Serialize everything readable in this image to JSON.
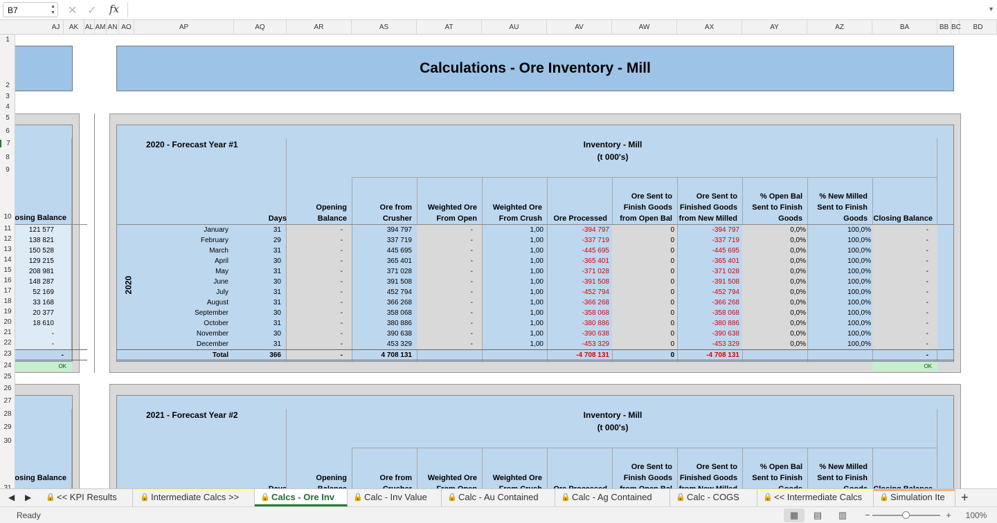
{
  "formula_bar": {
    "name_box": "B7",
    "cancel_icon": "✕",
    "enter_icon": "✓",
    "fx_label": "fx",
    "formula": ""
  },
  "columns": [
    "AJ",
    "AK",
    "AL",
    "AM",
    "AN",
    "AO",
    "AP",
    "AQ",
    "AR",
    "AS",
    "AT",
    "AU",
    "AV",
    "AW",
    "AX",
    "AY",
    "AZ",
    "BA",
    "BB",
    "BC",
    "BD"
  ],
  "rows": [
    "1",
    "2",
    "3",
    "4",
    "5",
    "6",
    "7",
    "8",
    "9",
    "10",
    "11",
    "12",
    "13",
    "14",
    "15",
    "16",
    "17",
    "18",
    "19",
    "20",
    "21",
    "22",
    "23",
    "24",
    "25",
    "26",
    "27",
    "28",
    "29",
    "30",
    "31"
  ],
  "title": "Calculations - Ore Inventory - Mill",
  "left_panel": {
    "header": "Closing Balance",
    "values": [
      "121 577",
      "138 821",
      "150 528",
      "129 215",
      "208 981",
      "148 287",
      "52 169",
      "33 168",
      "20 377",
      "18 610",
      "-",
      "-"
    ],
    "total": "-",
    "ok": "OK",
    "header2": "Closing Balance"
  },
  "block1": {
    "forecast_label": "2020 - Forecast Year #1",
    "group_title": "Inventory - Mill",
    "group_unit": "(t 000's)",
    "year": "2020",
    "headers": {
      "days": "Days",
      "opening": "Opening Balance",
      "ore_crusher": "Ore from Crusher",
      "w_open": "Weighted Ore From Open",
      "w_crush": "Weighted Ore From Crush",
      "processed": "Ore Processed",
      "sent_open": "Ore Sent to Finish Goods from Open Bal",
      "sent_new": "Ore Sent to Finished Goods from New Milled",
      "pct_open": "% Open Bal Sent to Finish Goods",
      "pct_new": "% New Milled Sent to Finish Goods",
      "closing": "Closing Balance"
    },
    "rows": [
      {
        "month": "January",
        "days": "31",
        "opening": "-",
        "crusher": "394 797",
        "w_open": "-",
        "w_crush": "1,00",
        "processed": "-394 797",
        "sent_open": "0",
        "sent_new": "-394 797",
        "pct_open": "0,0%",
        "pct_new": "100,0%",
        "closing": "-"
      },
      {
        "month": "February",
        "days": "29",
        "opening": "-",
        "crusher": "337 719",
        "w_open": "-",
        "w_crush": "1,00",
        "processed": "-337 719",
        "sent_open": "0",
        "sent_new": "-337 719",
        "pct_open": "0,0%",
        "pct_new": "100,0%",
        "closing": "-"
      },
      {
        "month": "March",
        "days": "31",
        "opening": "-",
        "crusher": "445 695",
        "w_open": "-",
        "w_crush": "1,00",
        "processed": "-445 695",
        "sent_open": "0",
        "sent_new": "-445 695",
        "pct_open": "0,0%",
        "pct_new": "100,0%",
        "closing": "-"
      },
      {
        "month": "April",
        "days": "30",
        "opening": "-",
        "crusher": "365 401",
        "w_open": "-",
        "w_crush": "1,00",
        "processed": "-365 401",
        "sent_open": "0",
        "sent_new": "-365 401",
        "pct_open": "0,0%",
        "pct_new": "100,0%",
        "closing": "-"
      },
      {
        "month": "May",
        "days": "31",
        "opening": "-",
        "crusher": "371 028",
        "w_open": "-",
        "w_crush": "1,00",
        "processed": "-371 028",
        "sent_open": "0",
        "sent_new": "-371 028",
        "pct_open": "0,0%",
        "pct_new": "100,0%",
        "closing": "-"
      },
      {
        "month": "June",
        "days": "30",
        "opening": "-",
        "crusher": "391 508",
        "w_open": "-",
        "w_crush": "1,00",
        "processed": "-391 508",
        "sent_open": "0",
        "sent_new": "-391 508",
        "pct_open": "0,0%",
        "pct_new": "100,0%",
        "closing": "-"
      },
      {
        "month": "July",
        "days": "31",
        "opening": "-",
        "crusher": "452 794",
        "w_open": "-",
        "w_crush": "1,00",
        "processed": "-452 794",
        "sent_open": "0",
        "sent_new": "-452 794",
        "pct_open": "0,0%",
        "pct_new": "100,0%",
        "closing": "-"
      },
      {
        "month": "August",
        "days": "31",
        "opening": "-",
        "crusher": "366 268",
        "w_open": "-",
        "w_crush": "1,00",
        "processed": "-366 268",
        "sent_open": "0",
        "sent_new": "-366 268",
        "pct_open": "0,0%",
        "pct_new": "100,0%",
        "closing": "-"
      },
      {
        "month": "September",
        "days": "30",
        "opening": "-",
        "crusher": "358 068",
        "w_open": "-",
        "w_crush": "1,00",
        "processed": "-358 068",
        "sent_open": "0",
        "sent_new": "-358 068",
        "pct_open": "0,0%",
        "pct_new": "100,0%",
        "closing": "-"
      },
      {
        "month": "October",
        "days": "31",
        "opening": "-",
        "crusher": "380 886",
        "w_open": "-",
        "w_crush": "1,00",
        "processed": "-380 886",
        "sent_open": "0",
        "sent_new": "-380 886",
        "pct_open": "0,0%",
        "pct_new": "100,0%",
        "closing": "-"
      },
      {
        "month": "November",
        "days": "30",
        "opening": "-",
        "crusher": "390 638",
        "w_open": "-",
        "w_crush": "1,00",
        "processed": "-390 638",
        "sent_open": "0",
        "sent_new": "-390 638",
        "pct_open": "0,0%",
        "pct_new": "100,0%",
        "closing": "-"
      },
      {
        "month": "December",
        "days": "31",
        "opening": "-",
        "crusher": "453 329",
        "w_open": "-",
        "w_crush": "1,00",
        "processed": "-453 329",
        "sent_open": "0",
        "sent_new": "-453 329",
        "pct_open": "0,0%",
        "pct_new": "100,0%",
        "closing": "-"
      }
    ],
    "total": {
      "label": "Total",
      "days": "366",
      "opening": "-",
      "crusher": "4 708 131",
      "processed": "-4 708 131",
      "sent_open": "0",
      "sent_new": "-4 708 131",
      "closing": "-"
    },
    "ok": "OK"
  },
  "block2": {
    "forecast_label": "2021 - Forecast Year #2",
    "group_title": "Inventory - Mill",
    "group_unit": "(t 000's)",
    "headers": {
      "days": "Days",
      "opening": "Opening Balance",
      "ore_crusher": "Ore from Crusher",
      "w_open": "Weighted Ore From Open",
      "w_crush": "Weighted Ore From Crush",
      "processed": "Ore Processed",
      "sent_open": "Ore Sent to Finish Goods from Open Bal",
      "sent_new": "Ore Sent to Finished Goods from New Milled",
      "pct_open": "% Open Bal Sent to Finish Goods",
      "pct_new": "% New Milled Sent to Finish Goods",
      "closing": "Closing Balance"
    }
  },
  "tabs": [
    {
      "label": "<< KPI Results",
      "locked": true,
      "color": ""
    },
    {
      "label": "Intermediate Calcs >>",
      "locked": true,
      "color": "#ffff99"
    },
    {
      "label": "Calcs - Ore Inv",
      "locked": true,
      "active": true,
      "color": ""
    },
    {
      "label": "Calc - Inv Value",
      "locked": true,
      "color": ""
    },
    {
      "label": "Calc - Au Contained",
      "locked": true,
      "color": ""
    },
    {
      "label": "Calc - Ag Contained",
      "locked": true,
      "color": ""
    },
    {
      "label": "Calc - COGS",
      "locked": true,
      "color": ""
    },
    {
      "label": "<< Intermediate Calcs",
      "locked": true,
      "color": "#ffff99"
    },
    {
      "label": "Simulation Ite",
      "locked": true,
      "color": "#f4b183"
    }
  ],
  "status": {
    "text": "Ready",
    "zoom": "100%",
    "zoom_level_percent": 100
  }
}
